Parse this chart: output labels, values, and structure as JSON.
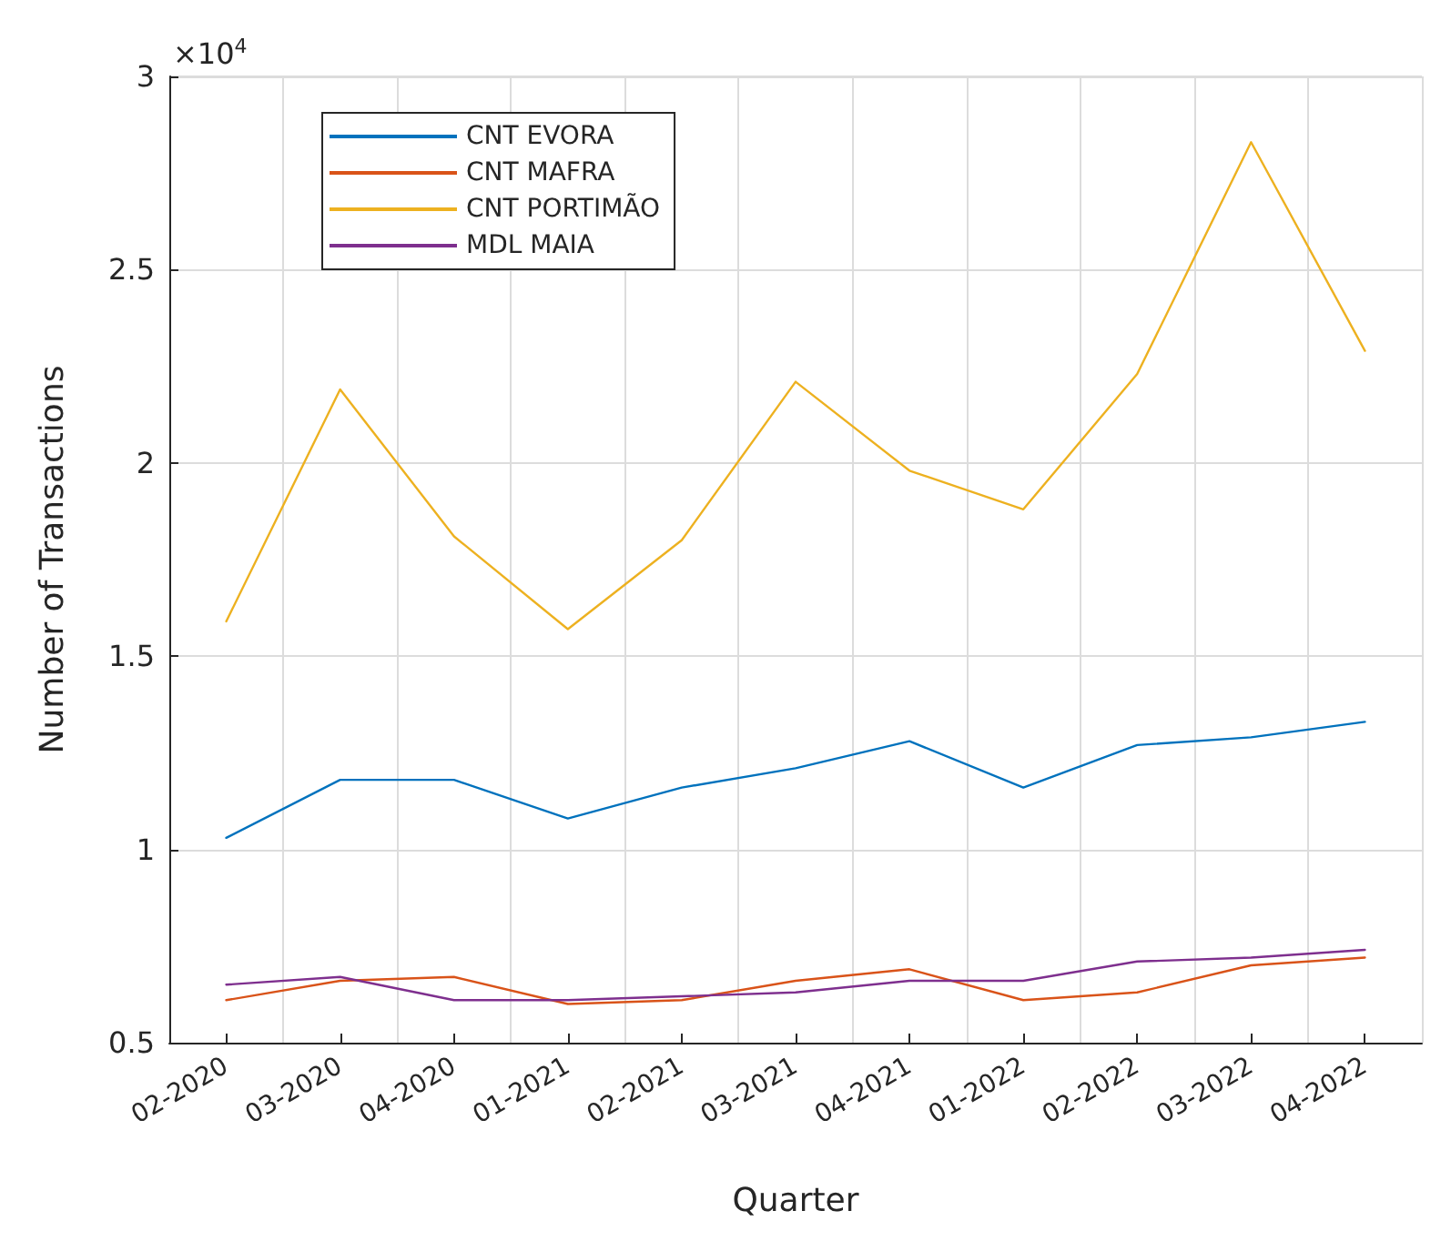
{
  "chart_data": {
    "type": "line",
    "xlabel": "Quarter",
    "ylabel": "Number of Transactions",
    "annotations": [
      "×10$^{4}$"
    ],
    "categories": [
      "02-2020",
      "03-2020",
      "04-2020",
      "01-2021",
      "02-2021",
      "03-2021",
      "04-2021",
      "01-2022",
      "02-2022",
      "03-2022",
      "04-2022"
    ],
    "series": [
      {
        "name": "CNT EVORA",
        "color": "#0072bd",
        "values": [
          1.03,
          1.18,
          1.18,
          1.08,
          1.16,
          1.21,
          1.28,
          1.16,
          1.27,
          1.29,
          1.33
        ]
      },
      {
        "name": "CNT MAFRA",
        "color": "#d95319",
        "values": [
          0.61,
          0.66,
          0.67,
          0.6,
          0.61,
          0.66,
          0.69,
          0.61,
          0.63,
          0.7,
          0.72
        ]
      },
      {
        "name": "CNT PORTIMÃO",
        "color": "#edb120",
        "values": [
          1.59,
          2.19,
          1.81,
          1.57,
          1.8,
          2.21,
          1.98,
          1.88,
          2.23,
          2.83,
          2.29
        ]
      },
      {
        "name": "MDL MAIA",
        "color": "#7e2f8e",
        "values": [
          0.65,
          0.67,
          0.61,
          0.61,
          0.62,
          0.63,
          0.66,
          0.66,
          0.71,
          0.72,
          0.74
        ]
      }
    ],
    "ylim": [
      0.5,
      3
    ],
    "yticks": [
      0.5,
      1,
      1.5,
      2,
      2.5,
      3
    ],
    "grid": true,
    "legend": "top left",
    "marker": "none",
    "line_style": "solid"
  }
}
